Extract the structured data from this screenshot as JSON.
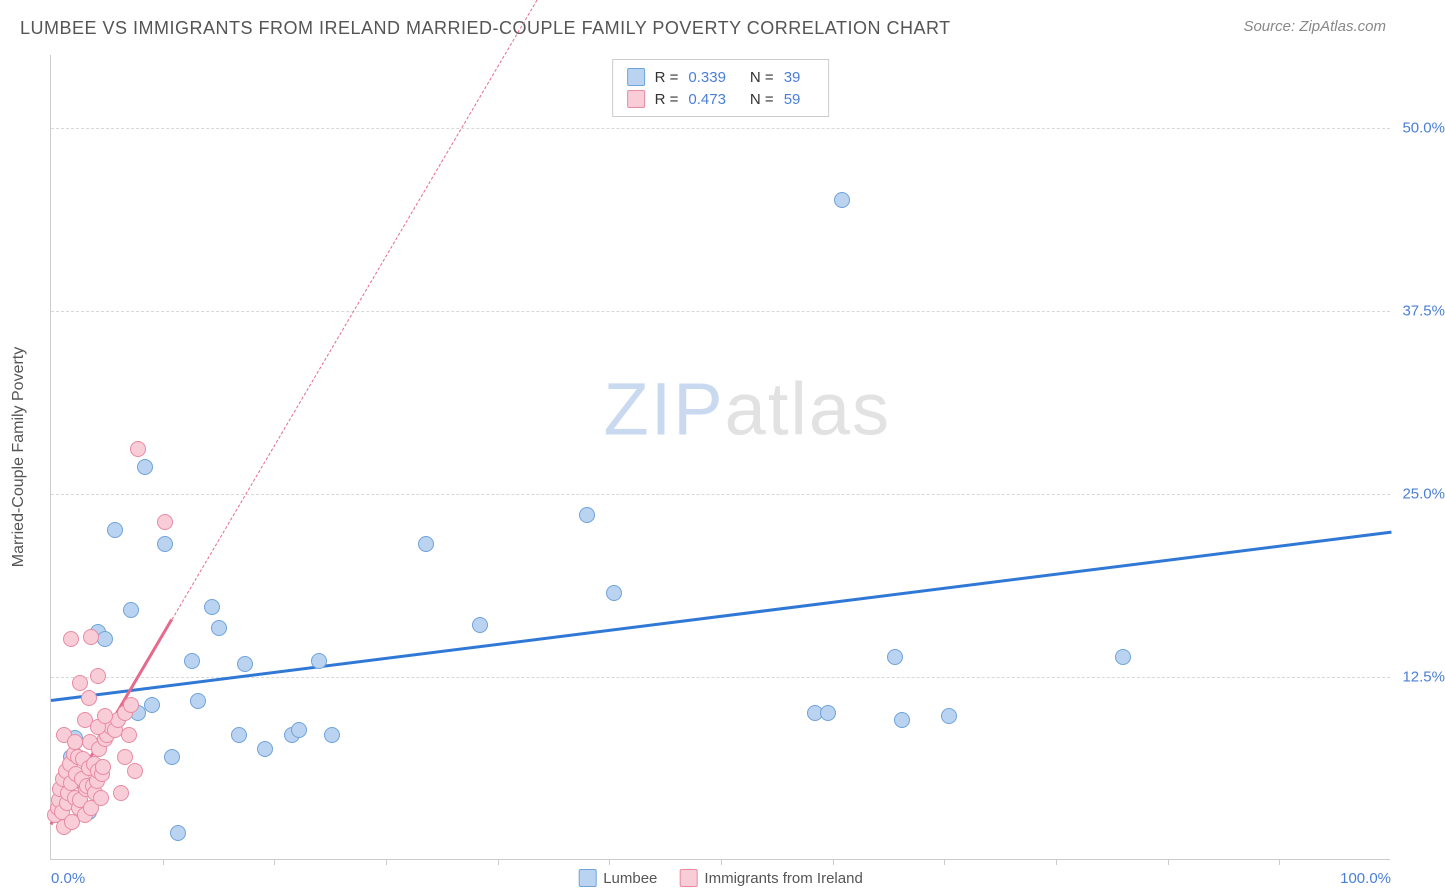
{
  "title": "LUMBEE VS IMMIGRANTS FROM IRELAND MARRIED-COUPLE FAMILY POVERTY CORRELATION CHART",
  "source": "Source: ZipAtlas.com",
  "watermark": {
    "part1": "ZIP",
    "part2": "atlas"
  },
  "chart": {
    "type": "scatter",
    "y_axis_title": "Married-Couple Family Poverty",
    "xlim": [
      0,
      100
    ],
    "ylim": [
      0,
      55
    ],
    "y_ticks": [
      {
        "v": 12.5,
        "label": "12.5%"
      },
      {
        "v": 25.0,
        "label": "25.0%"
      },
      {
        "v": 37.5,
        "label": "37.5%"
      },
      {
        "v": 50.0,
        "label": "50.0%"
      }
    ],
    "x_ticks_minor": [
      8.33,
      16.67,
      25,
      33.33,
      41.67,
      50,
      58.33,
      66.67,
      75,
      83.33,
      91.67
    ],
    "x_labels": [
      {
        "v": 0,
        "label": "0.0%"
      },
      {
        "v": 100,
        "label": "100.0%"
      }
    ],
    "marker_radius": 8,
    "marker_stroke_width": 1.5,
    "series": [
      {
        "name": "Lumbee",
        "fill": "#b9d3f0",
        "stroke": "#6fa3db",
        "trend_color": "#2f78d6",
        "trend_width": 3,
        "trend_dash": "solid",
        "stats": {
          "R": "0.339",
          "N": "39"
        },
        "trend": {
          "x1": 0,
          "y1": 11.0,
          "x2": 100,
          "y2": 22.5
        },
        "points": [
          [
            0.5,
            3
          ],
          [
            0.8,
            4.5
          ],
          [
            1.2,
            6
          ],
          [
            1.5,
            7
          ],
          [
            1.8,
            8.3
          ],
          [
            2.5,
            5
          ],
          [
            2.8,
            3.2
          ],
          [
            3.5,
            15.5
          ],
          [
            4,
            15
          ],
          [
            4.8,
            22.5
          ],
          [
            6,
            17
          ],
          [
            6.5,
            10
          ],
          [
            7,
            26.8
          ],
          [
            7.5,
            10.5
          ],
          [
            8.5,
            21.5
          ],
          [
            9,
            7
          ],
          [
            9.5,
            1.8
          ],
          [
            10.5,
            13.5
          ],
          [
            11,
            10.8
          ],
          [
            12,
            17.2
          ],
          [
            12.5,
            15.8
          ],
          [
            14,
            8.5
          ],
          [
            14.5,
            13.3
          ],
          [
            16,
            7.5
          ],
          [
            18,
            8.5
          ],
          [
            18.5,
            8.8
          ],
          [
            20,
            13.5
          ],
          [
            21,
            8.5
          ],
          [
            28,
            21.5
          ],
          [
            32,
            16
          ],
          [
            40,
            23.5
          ],
          [
            42,
            18.2
          ],
          [
            57,
            10
          ],
          [
            58,
            10
          ],
          [
            59,
            45
          ],
          [
            63,
            13.8
          ],
          [
            67,
            9.8
          ],
          [
            80,
            13.8
          ],
          [
            63.5,
            9.5
          ]
        ]
      },
      {
        "name": "Immigrants from Ireland",
        "fill": "#f8cdd7",
        "stroke": "#e88aa2",
        "trend_color": "#e56b8c",
        "trend_width": 3,
        "trend_dash": "solid",
        "trend_ext_dash": "4 6",
        "stats": {
          "R": "0.473",
          "N": "59"
        },
        "trend": {
          "x1": 0,
          "y1": 2.5,
          "x2": 9,
          "y2": 16.5
        },
        "trend_ext": {
          "x1": 9,
          "y1": 16.5,
          "x2": 37,
          "y2": 60
        },
        "points": [
          [
            0.3,
            3
          ],
          [
            0.5,
            3.5
          ],
          [
            0.6,
            4
          ],
          [
            0.7,
            4.8
          ],
          [
            0.8,
            3.2
          ],
          [
            0.9,
            5.5
          ],
          [
            1.0,
            2.2
          ],
          [
            1.1,
            6
          ],
          [
            1.2,
            3.8
          ],
          [
            1.3,
            4.5
          ],
          [
            1.4,
            6.5
          ],
          [
            1.5,
            5.2
          ],
          [
            1.6,
            2.5
          ],
          [
            1.7,
            7.2
          ],
          [
            1.8,
            4.2
          ],
          [
            1.9,
            5.8
          ],
          [
            2.0,
            7
          ],
          [
            2.1,
            3.5
          ],
          [
            2.2,
            4
          ],
          [
            2.3,
            5.5
          ],
          [
            2.4,
            6.8
          ],
          [
            2.5,
            3
          ],
          [
            2.6,
            4.8
          ],
          [
            2.7,
            5
          ],
          [
            2.8,
            6.2
          ],
          [
            2.9,
            8
          ],
          [
            3.0,
            3.5
          ],
          [
            3.1,
            5
          ],
          [
            3.2,
            6.5
          ],
          [
            3.3,
            4.5
          ],
          [
            3.4,
            5.3
          ],
          [
            3.5,
            6
          ],
          [
            3.6,
            7.5
          ],
          [
            3.7,
            4.2
          ],
          [
            3.8,
            5.8
          ],
          [
            3.9,
            6.3
          ],
          [
            4.0,
            8.2
          ],
          [
            4.2,
            8.5
          ],
          [
            4.5,
            9
          ],
          [
            4.8,
            8.8
          ],
          [
            5,
            9.5
          ],
          [
            5.2,
            4.5
          ],
          [
            5.5,
            10
          ],
          [
            5.8,
            8.5
          ],
          [
            6,
            10.5
          ],
          [
            6.3,
            6
          ],
          [
            1.5,
            15
          ],
          [
            3,
            15.2
          ],
          [
            2.5,
            9.5
          ],
          [
            3.5,
            9
          ],
          [
            4,
            9.8
          ],
          [
            1,
            8.5
          ],
          [
            1.8,
            8
          ],
          [
            2.2,
            12
          ],
          [
            2.8,
            11
          ],
          [
            3.5,
            12.5
          ],
          [
            6.5,
            28
          ],
          [
            8.5,
            23
          ],
          [
            5.5,
            7
          ]
        ]
      }
    ],
    "legend_bottom": [
      {
        "swatch_fill": "#b9d3f0",
        "swatch_stroke": "#6fa3db",
        "label": "Lumbee"
      },
      {
        "swatch_fill": "#f8cdd7",
        "swatch_stroke": "#e88aa2",
        "label": "Immigrants from Ireland"
      }
    ]
  }
}
